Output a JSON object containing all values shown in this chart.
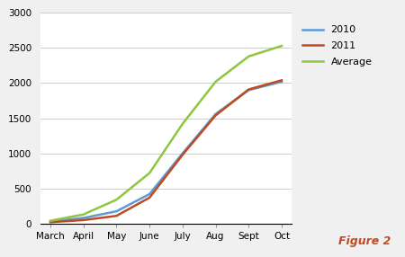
{
  "months": [
    "March",
    "April",
    "May",
    "June",
    "July",
    "Aug",
    "Sept",
    "Oct"
  ],
  "y2010": [
    30,
    80,
    175,
    420,
    1000,
    1560,
    1900,
    2020
  ],
  "y2011": [
    20,
    50,
    110,
    370,
    980,
    1540,
    1910,
    2040
  ],
  "average": [
    40,
    130,
    340,
    720,
    1420,
    2020,
    2380,
    2530
  ],
  "color_2010": "#5B9BD5",
  "color_2011": "#BE4B20",
  "color_avg": "#8DC63F",
  "legend_labels": [
    "2010",
    "2011",
    "Average"
  ],
  "ylim": [
    0,
    3000
  ],
  "yticks": [
    0,
    500,
    1000,
    1500,
    2000,
    2500,
    3000
  ],
  "figure2_text": "Figure 2",
  "figure2_color": "#BE4B20",
  "bg_color": "#F0F0F0",
  "plot_bg": "#FFFFFF",
  "line_width": 1.8
}
